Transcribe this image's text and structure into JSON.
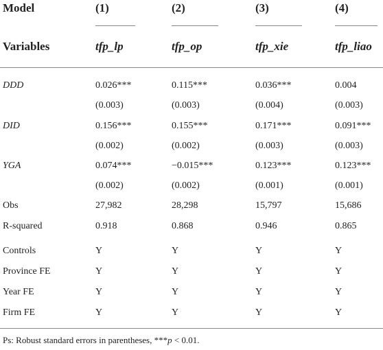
{
  "header": {
    "model_label": "Model",
    "columns": [
      "(1)",
      "(2)",
      "(3)",
      "(4)"
    ],
    "variables_label": "Variables",
    "dependents": [
      "tfp_lp",
      "tfp_op",
      "tfp_xie",
      "tfp_liao"
    ]
  },
  "table": {
    "rows": [
      {
        "label": "DDD",
        "italic": true,
        "cells": [
          "0.026***",
          "0.115***",
          "0.036***",
          "0.004"
        ]
      },
      {
        "cells": [
          "(0.003)",
          "(0.003)",
          "(0.004)",
          "(0.003)"
        ]
      },
      {
        "label": "DID",
        "italic": true,
        "cells": [
          "0.156***",
          "0.155***",
          "0.171***",
          "0.091***"
        ]
      },
      {
        "cells": [
          "(0.002)",
          "(0.002)",
          "(0.003)",
          "(0.003)"
        ]
      },
      {
        "label": "YGA",
        "italic": true,
        "cells": [
          "0.074***",
          "−0.015***",
          "0.123***",
          "0.123***"
        ]
      },
      {
        "cells": [
          "(0.002)",
          "(0.002)",
          "(0.001)",
          "(0.001)"
        ]
      },
      {
        "label": "Obs",
        "cells": [
          "27,982",
          "28,298",
          "15,797",
          "15,686"
        ]
      },
      {
        "label": "R-squared",
        "cells": [
          "0.918",
          "0.868",
          "0.946",
          "0.865"
        ]
      },
      {
        "label": "Controls",
        "cells": [
          "Y",
          "Y",
          "Y",
          "Y"
        ]
      },
      {
        "label": "Province FE",
        "cells": [
          "Y",
          "Y",
          "Y",
          "Y"
        ]
      },
      {
        "label": "Year FE",
        "cells": [
          "Y",
          "Y",
          "Y",
          "Y"
        ]
      },
      {
        "label": "Firm FE",
        "cells": [
          "Y",
          "Y",
          "Y",
          "Y"
        ]
      }
    ]
  },
  "note": {
    "prefix": "Ps: Robust standard errors in parentheses, ***",
    "italic": "p",
    "suffix": " < 0.01."
  }
}
